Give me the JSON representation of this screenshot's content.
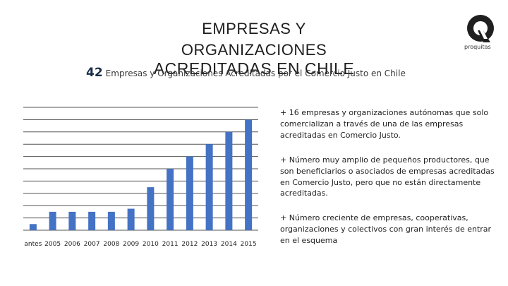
{
  "header": {
    "title_lines": [
      "EMPRESAS Y",
      "ORGANIZACIONES",
      "ACREDITADAS EN CHILE"
    ],
    "subtitle_number": "42",
    "subtitle_text": "Empresas y Organizaciones Acreditadas por el Comercio Justo en Chile"
  },
  "logo": {
    "icon": "proquitas-q-icon",
    "text": "proquitas"
  },
  "notes": [
    "+ 16 empresas y organizaciones autónomas que solo comercializan a través de una de las empresas acreditadas en Comercio Justo.",
    "+ Número muy amplio de pequeños productores, que son beneficiarios o asociados de empresas acreditadas en Comercio Justo, pero que no están directamente acreditadas.",
    "+ Número creciente de empresas, cooperativas, organizaciones y colectivos con gran interés de entrar en el esquema"
  ],
  "chart_data": {
    "type": "bar",
    "categories": [
      "antes",
      "2005",
      "2006",
      "2007",
      "2008",
      "2009",
      "2010",
      "2011",
      "2012",
      "2013",
      "2014",
      "2015"
    ],
    "values": [
      1,
      3,
      3,
      3,
      3,
      3.5,
      7,
      10,
      12,
      14,
      16,
      18
    ],
    "ylim": [
      0,
      20
    ],
    "grid": true,
    "bar_color": "#4472c4",
    "grid_color": "#555555"
  }
}
